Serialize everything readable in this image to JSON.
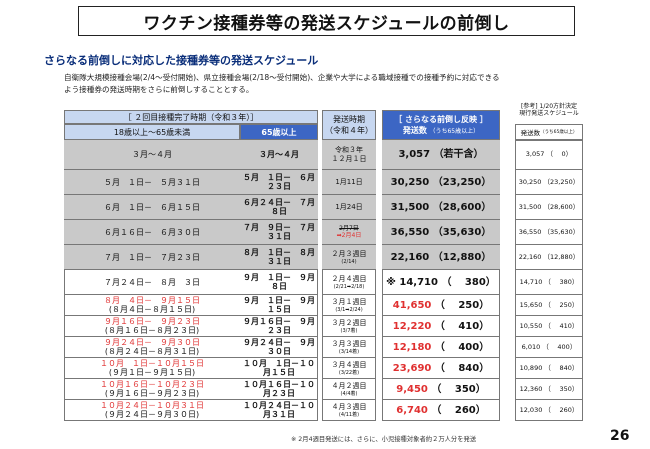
{
  "title": "ワクチン接種券等の発送スケジュールの前倒し",
  "subtitle": "さらなる前倒しに対応した接種券等の発送スケジュール",
  "intro": "自衛隊大規模接種会場(2/4～受付開始)、県立接種会場(2/18～受付開始)、企業や大学による職域接種での接種予約に対応できるよう接種券の発送時期をさらに前倒しすることとする。",
  "header": {
    "completion": "［ ２回目接種完了時期（令和３年）］",
    "age_18_64": "18歳以上～65歳未満",
    "age_65": "65歳以上",
    "ship_title": "発送時期",
    "ship_year": "（令和４年）",
    "new_title": "［ さらなる前倒し反映 ］",
    "new_count": "発送数",
    "new_count_note": "（うち65歳以上）",
    "ref_title": "[参考] 1/20方針決定",
    "ref_sub": "現行発送スケジュール",
    "ref_count": "発送数",
    "ref_count_note": "（うち65歳以上）"
  },
  "rows": [
    {
      "left": "３月～４月",
      "age65": "３月～４月",
      "ship": "令和３年",
      "ship2": "１２月１日",
      "count": "3,057",
      "sub": "（若干含）",
      "ref_count": "3,057",
      "ref_sub": "（　 0）"
    },
    {
      "left": "５月　１日－　５月３１日",
      "age65": "５月　１日－　６月２３日",
      "ship": "1月11日",
      "count": "30,250",
      "sub": "（23,250）",
      "ref_count": "30,250",
      "ref_sub": "（23,250）"
    },
    {
      "left": "６月　１日－　６月１５日",
      "age65": "６月２４日－　７月　８日",
      "ship": "1月24日",
      "count": "31,500",
      "sub": "（28,600）",
      "ref_count": "31,500",
      "ref_sub": "（28,600）"
    },
    {
      "left": "６月１６日－　６月３０日",
      "age65": "７月　９日－　７月３１日",
      "ship": "2月7日",
      "ship2": "➡2月4日",
      "count": "36,550",
      "sub": "（35,630）",
      "ref_count": "36,550",
      "ref_sub": "（35,630）"
    },
    {
      "left": "７月　１日－　７月２３日",
      "age65": "８月　１日－　８月３１日",
      "ship": "２月３週目",
      "ship2": "(2/14)",
      "count": "22,160",
      "sub": "（12,880）",
      "ref_count": "22,160",
      "ref_sub": "（12,880）"
    },
    {
      "left": "７月２４日－　８月　３日",
      "age65": "９月　１日－　９月　８日",
      "ship": "２月４週目",
      "ship2": "(2/21➡2/18)",
      "count": "※ 14,710",
      "sub": "（　 380）",
      "ref_count": "14,710",
      "ref_sub": "（　 380）"
    },
    {
      "left": "８月　４日－　９月１５日",
      "left2": "(８月４日－８月１５日)",
      "age65": "９月　１日－　９月１５日",
      "ship": "３月１週目",
      "ship2": "(3/1➡2/24)",
      "count": "41,650",
      "sub": "（　 250）",
      "ref_count": "15,650",
      "ref_sub": "（　 250）"
    },
    {
      "left": "９月１６日－　９月２３日",
      "left2": "(８月１６日－８月２３日)",
      "age65": "９月１６日－　９月２３日",
      "ship": "３月２週目",
      "ship2": "(3/7着)",
      "count": "12,220",
      "sub": "（　 410）",
      "ref_count": "10,550",
      "ref_sub": "（　 410）"
    },
    {
      "left": "９月２４日－　９月３０日",
      "left2": "(８月２４日－８月３１日)",
      "age65": "９月２４日－　９月３０日",
      "ship": "３月３週目",
      "ship2": "(3/14着)",
      "count": "12,180",
      "sub": "（　 400）",
      "ref_count": "6,010",
      "ref_sub": "（　 400）"
    },
    {
      "left": "１０月　１日－１０月１５日",
      "left2": "(９月１日－９月１５日)",
      "age65": "１０月　１日－１０月１５日",
      "ship": "３月４週目",
      "ship2": "(3/22着)",
      "count": "23,690",
      "sub": "（　 840）",
      "ref_count": "10,890",
      "ref_sub": "（　 840）"
    },
    {
      "left": "１０月１６日－１０月２３日",
      "left2": "(９月１６日－９月２３日)",
      "age65": "１０月１６日－１０月２３日",
      "ship": "４月２週目",
      "ship2": "(4/4着)",
      "count": "9,450",
      "sub": "（　 350）",
      "ref_count": "12,360",
      "ref_sub": "（　 350）"
    },
    {
      "left": "１０月２４日－１０月３１日",
      "left2": "(９月２４日－９月３０日)",
      "age65": "１０月２４日－１０月３１日",
      "ship": "４月３週目",
      "ship2": "(4/11着)",
      "count": "6,740",
      "sub": "（　 260）",
      "ref_count": "12,030",
      "ref_sub": "（　 260）"
    }
  ],
  "note": "※ 2月4週目発送には、さらに、小児接種対象者約２万人分を発送",
  "page_number": "26",
  "colors": {
    "header_blue": "#3c66c4",
    "header_light": "#c7d7f0",
    "shade": "#c9c9c9",
    "red": "#e03030"
  }
}
